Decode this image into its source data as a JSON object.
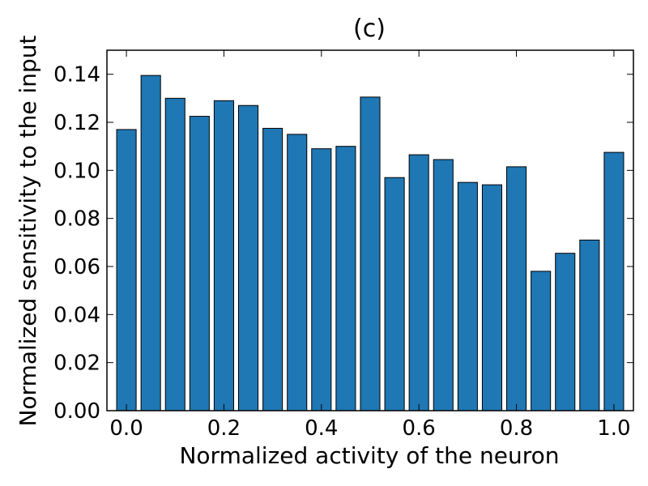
{
  "chart_data": {
    "type": "bar",
    "title": "(c)",
    "xlabel": "Normalized activity of the neuron",
    "ylabel": "Normalized sensitivity to the input",
    "x": [
      0.0,
      0.05,
      0.1,
      0.15,
      0.2,
      0.25,
      0.3,
      0.35,
      0.4,
      0.45,
      0.5,
      0.55,
      0.6,
      0.65,
      0.7,
      0.75,
      0.8,
      0.85,
      0.9,
      0.95,
      1.0
    ],
    "values": [
      0.117,
      0.1395,
      0.13,
      0.1225,
      0.129,
      0.127,
      0.1175,
      0.115,
      0.109,
      0.11,
      0.1305,
      0.097,
      0.1065,
      0.1045,
      0.095,
      0.094,
      0.1015,
      0.058,
      0.0655,
      0.071,
      0.1075
    ],
    "bar_width": 0.04,
    "xlim": [
      -0.04,
      1.04
    ],
    "ylim": [
      0.0,
      0.15
    ],
    "xticks": [
      0.0,
      0.2,
      0.4,
      0.6,
      0.8,
      1.0
    ],
    "xtick_labels": [
      "0.0",
      "0.2",
      "0.4",
      "0.6",
      "0.8",
      "1.0"
    ],
    "yticks": [
      0.0,
      0.02,
      0.04,
      0.06,
      0.08,
      0.1,
      0.12,
      0.14
    ],
    "ytick_labels": [
      "0.00",
      "0.02",
      "0.04",
      "0.06",
      "0.08",
      "0.10",
      "0.12",
      "0.14"
    ],
    "bar_color": "#1f77b4",
    "edge_color": "#000000",
    "grid": false,
    "legend": "none"
  }
}
